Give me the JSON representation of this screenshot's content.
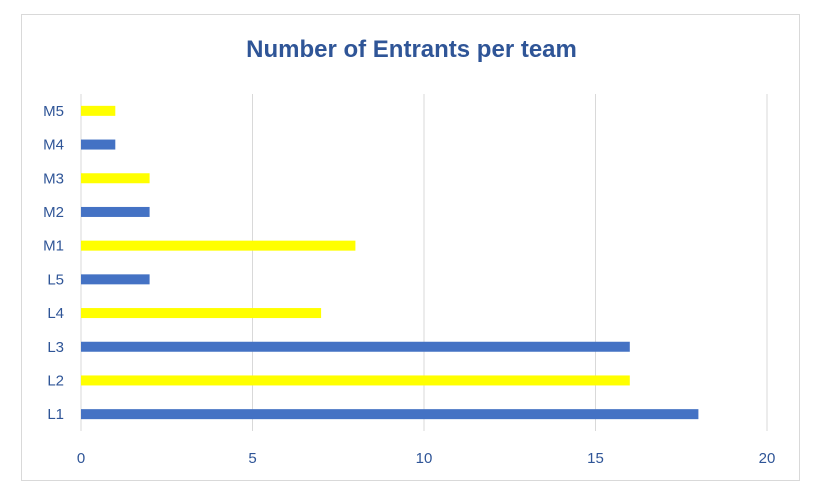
{
  "chart_data": {
    "type": "bar",
    "orientation": "horizontal",
    "title": "Number of Entrants per team",
    "xlabel": "",
    "ylabel": "",
    "categories": [
      "L1",
      "L2",
      "L3",
      "L4",
      "L5",
      "M1",
      "M2",
      "M3",
      "M4",
      "M5"
    ],
    "values": [
      18,
      16,
      16,
      7,
      2,
      8,
      2,
      2,
      1,
      1
    ],
    "bar_colors": [
      "#4472c4",
      "#ffff00",
      "#4472c4",
      "#ffff00",
      "#4472c4",
      "#ffff00",
      "#4472c4",
      "#ffff00",
      "#4472c4",
      "#ffff00"
    ],
    "xlim": [
      0,
      20
    ],
    "xticks": [
      "0",
      "5",
      "10",
      "15",
      "20"
    ],
    "grid": true,
    "legend": "none"
  },
  "colors": {
    "title": "#2f5597",
    "tick_labels": "#2f5597",
    "gridline": "#d9d9d9",
    "border": "#d9d9d9"
  }
}
